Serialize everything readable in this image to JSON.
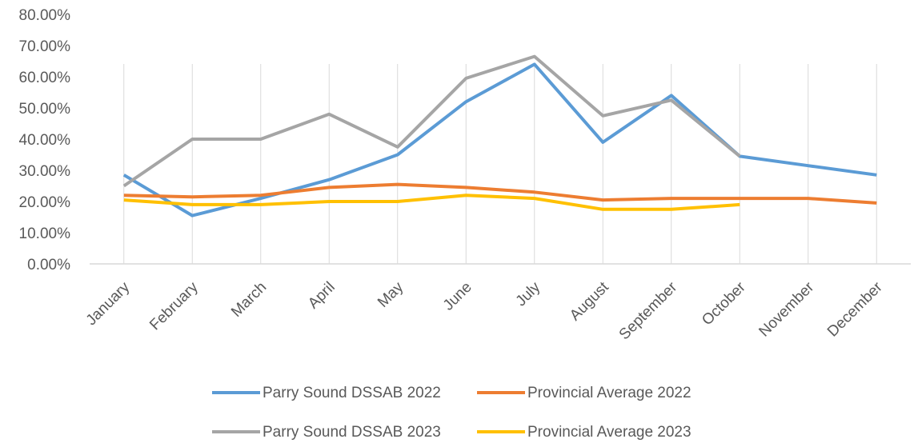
{
  "chart_data": {
    "type": "line",
    "categories": [
      "January",
      "February",
      "March",
      "April",
      "May",
      "June",
      "July",
      "August",
      "September",
      "October",
      "November",
      "December"
    ],
    "y_ticks": [
      "0.00%",
      "10.00%",
      "20.00%",
      "30.00%",
      "40.00%",
      "50.00%",
      "60.00%",
      "70.00%",
      "80.00%"
    ],
    "ylim": [
      0,
      80
    ],
    "y_unit": "percent",
    "grid": "vertical",
    "legend_position": "bottom",
    "series": [
      {
        "name": "Parry Sound DSSAB 2022",
        "color": "#5B9BD5",
        "values": [
          28.5,
          15.5,
          21.0,
          27.0,
          35.0,
          52.0,
          64.0,
          39.0,
          54.0,
          34.5,
          31.5,
          28.5
        ]
      },
      {
        "name": "Provincial Average 2022",
        "color": "#ED7D31",
        "values": [
          22.0,
          21.5,
          22.0,
          24.5,
          25.5,
          24.5,
          23.0,
          20.5,
          21.0,
          21.0,
          21.0,
          19.5
        ]
      },
      {
        "name": "Parry Sound DSSAB 2023",
        "color": "#A5A5A5",
        "values": [
          25.0,
          40.0,
          40.0,
          48.0,
          37.5,
          59.5,
          66.5,
          47.5,
          52.5,
          34.5,
          null,
          null
        ]
      },
      {
        "name": "Provincial Average 2023",
        "color": "#FFC000",
        "values": [
          20.5,
          19.0,
          19.0,
          20.0,
          20.0,
          22.0,
          21.0,
          17.5,
          17.5,
          19.0,
          null,
          null
        ]
      }
    ]
  }
}
